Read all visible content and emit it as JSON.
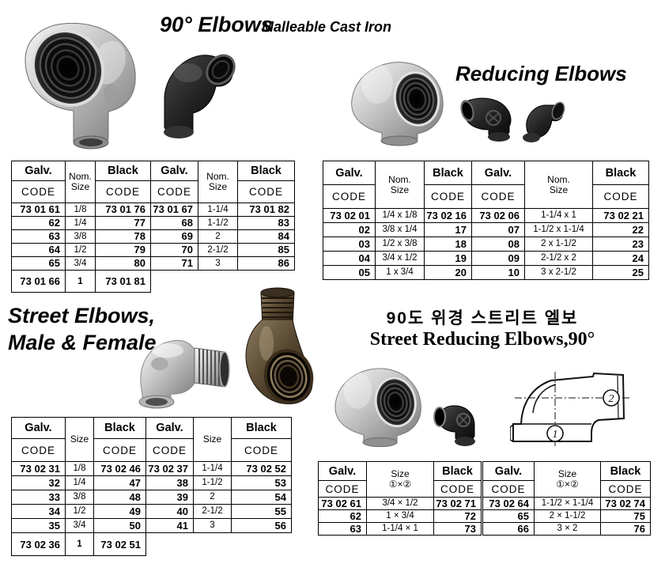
{
  "colors": {
    "paper": "#ffffff",
    "ink": "#000000",
    "galvanized": "#c8c8c8",
    "black_iron": "#1a1a1a",
    "bronze": "#55452f"
  },
  "sections": {
    "elbows90": {
      "title": "90° Elbows",
      "subtitle": "Malleable Cast Iron",
      "table": {
        "header": {
          "galv": "Galv.",
          "black": "Black",
          "code": "CODE",
          "size_lines": [
            "Nom.",
            "Size"
          ]
        },
        "left_rows": [
          [
            "73 01 61",
            "1/8",
            "73 01 76"
          ],
          [
            "62",
            "1/4",
            "77"
          ],
          [
            "63",
            "3/8",
            "78"
          ],
          [
            "64",
            "1/2",
            "79"
          ],
          [
            "65",
            "3/4",
            "80"
          ]
        ],
        "right_rows": [
          [
            "73 01 67",
            "1-1/4",
            "73 01 82"
          ],
          [
            "68",
            "1-1/2",
            "83"
          ],
          [
            "69",
            "2",
            "84"
          ],
          [
            "70",
            "2-1/2",
            "85"
          ],
          [
            "71",
            "3",
            "86"
          ]
        ],
        "footer": [
          "73 01 66",
          "1",
          "73 01 81"
        ]
      }
    },
    "reducing": {
      "title": "Reducing Elbows",
      "table": {
        "header": {
          "galv": "Galv.",
          "black": "Black",
          "code": "CODE",
          "size_lines": [
            "Nom.",
            "Size"
          ]
        },
        "left_rows": [
          [
            "73 02 01",
            "1/4 x 1/8",
            "73 02 16"
          ],
          [
            "02",
            "3/8 x 1/4",
            "17"
          ],
          [
            "03",
            "1/2 x 3/8",
            "18"
          ],
          [
            "04",
            "3/4 x 1/2",
            "19"
          ],
          [
            "05",
            "1 x 3/4",
            "20"
          ]
        ],
        "right_rows": [
          [
            "73 02 06",
            "1-1/4 x 1",
            "73 02 21"
          ],
          [
            "07",
            "1-1/2 x 1-1/4",
            "22"
          ],
          [
            "08",
            "2 x 1-1/2",
            "23"
          ],
          [
            "09",
            "2-1/2 x 2",
            "24"
          ],
          [
            "10",
            "3 x 2-1/2",
            "25"
          ]
        ]
      }
    },
    "street": {
      "title_line1": "Street Elbows,",
      "title_line2": "Male & Female",
      "table": {
        "header": {
          "galv": "Galv.",
          "black": "Black",
          "code": "CODE",
          "size_lines": [
            "Size"
          ]
        },
        "left_rows": [
          [
            "73 02 31",
            "1/8",
            "73 02 46"
          ],
          [
            "32",
            "1/4",
            "47"
          ],
          [
            "33",
            "3/8",
            "48"
          ],
          [
            "34",
            "1/2",
            "49"
          ],
          [
            "35",
            "3/4",
            "50"
          ]
        ],
        "right_rows": [
          [
            "73 02 37",
            "1-1/4",
            "73 02 52"
          ],
          [
            "38",
            "1-1/2",
            "53"
          ],
          [
            "39",
            "2",
            "54"
          ],
          [
            "40",
            "2-1/2",
            "55"
          ],
          [
            "41",
            "3",
            "56"
          ]
        ],
        "footer": [
          "73 02 36",
          "1",
          "73 02 51"
        ]
      }
    },
    "street_reducing": {
      "title_korean": "90도 위경 스트리트 엘보",
      "title_english": "Street Reducing Elbows,90°",
      "diagram_labels": {
        "one": "1",
        "two": "2"
      },
      "table": {
        "header": {
          "galv": "Galv.",
          "black": "Black",
          "code": "CODE",
          "size_lines": [
            "Size",
            "①×②"
          ]
        },
        "left_rows": [
          [
            "73 02 61",
            "3/4 × 1/2",
            "73 02 71"
          ],
          [
            "62",
            "1 × 3/4",
            "72"
          ],
          [
            "63",
            "1-1/4 × 1",
            "73"
          ]
        ],
        "right_rows": [
          [
            "73 02 64",
            "1-1/2 × 1-1/4",
            "73 02 74"
          ],
          [
            "65",
            "2 × 1-1/2",
            "75"
          ],
          [
            "66",
            "3 × 2",
            "76"
          ]
        ]
      }
    }
  }
}
